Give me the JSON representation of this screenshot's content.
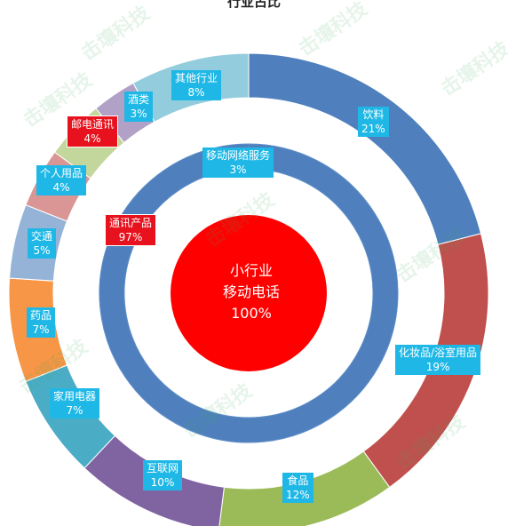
{
  "chart_data": [
    {
      "type": "pie",
      "title": "行业占比",
      "ring": "outer",
      "series": [
        {
          "label": "饮料",
          "value": 21,
          "value_label": "21%",
          "color": "#4f80bd"
        },
        {
          "label": "化妆品/浴室用品",
          "value": 19,
          "value_label": "19%",
          "color": "#c0504d"
        },
        {
          "label": "食品",
          "value": 12,
          "value_label": "12%",
          "color": "#9bbb59"
        },
        {
          "label": "互联网",
          "value": 10,
          "value_label": "10%",
          "color": "#8064a2"
        },
        {
          "label": "家用电器",
          "value": 7,
          "value_label": "7%",
          "color": "#4bacc6"
        },
        {
          "label": "药品",
          "value": 7,
          "value_label": "7%",
          "color": "#f79646"
        },
        {
          "label": "交通",
          "value": 5,
          "value_label": "5%",
          "color": "#95b3d7"
        },
        {
          "label": "个人用品",
          "value": 4,
          "value_label": "4%",
          "color": "#d99694"
        },
        {
          "label": "邮电通讯",
          "value": 4,
          "value_label": "4%",
          "color": "#c3d69b"
        },
        {
          "label": "酒类",
          "value": 3,
          "value_label": "3%",
          "color": "#b2a1c7"
        },
        {
          "label": "其他行业",
          "value": 8,
          "value_label": "8%",
          "color": "#93cddd"
        }
      ]
    },
    {
      "type": "pie",
      "ring": "middle",
      "series": [
        {
          "label": "通讯产品",
          "value": 97,
          "value_label": "97%",
          "color": "#4f80bd"
        },
        {
          "label": "移动网络服务",
          "value": 3,
          "value_label": "3%",
          "color": "#4f80bd"
        }
      ]
    },
    {
      "type": "pie",
      "ring": "inner",
      "series": [
        {
          "label": "小行业",
          "sublabel": "移动电话",
          "value": 100,
          "value_label": "100%",
          "color": "#ff0000"
        }
      ]
    }
  ],
  "watermark": "击壤科技"
}
